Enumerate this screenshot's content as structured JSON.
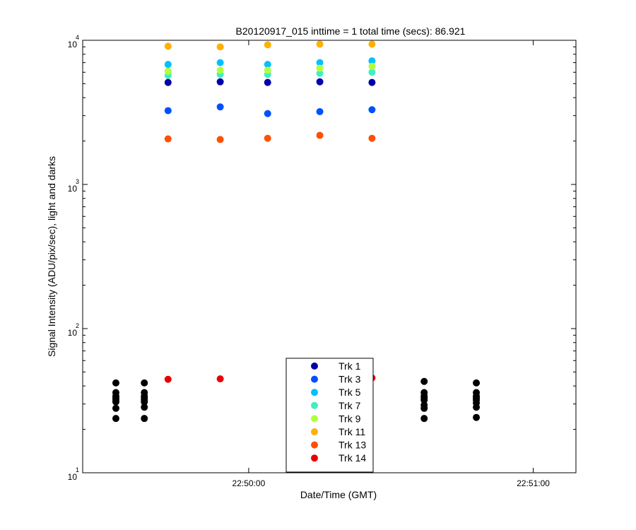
{
  "chart_data": {
    "type": "scatter",
    "title": "B20120917_015 inttime = 1 total time (secs): 86.921",
    "xlabel": "Date/Time (GMT)",
    "ylabel": "Signal Intensity (ADU/pix/sec), light and darks",
    "yscale": "log",
    "ylim": [
      10,
      10000
    ],
    "xlim": [
      "22:49:25",
      "22:51:09"
    ],
    "x_ticks": [
      {
        "value": "22:50:00",
        "label": "22:50:00"
      },
      {
        "value": "22:51:00",
        "label": "22:51:00"
      }
    ],
    "y_ticks": [
      {
        "value": 10,
        "base": "10",
        "exp": "1"
      },
      {
        "value": 100,
        "base": "10",
        "exp": "2"
      },
      {
        "value": 1000,
        "base": "10",
        "exp": "3"
      },
      {
        "value": 10000,
        "base": "10",
        "exp": "4"
      }
    ],
    "grid": false,
    "legend_position": "bottom-center",
    "series": [
      {
        "name": "Trk 1",
        "color": "#0000a8",
        "x": [
          "22:49:43",
          "22:49:54",
          "22:50:04",
          "22:50:15",
          "22:50:26"
        ],
        "y": [
          5100,
          5150,
          5100,
          5150,
          5100
        ]
      },
      {
        "name": "Trk 3",
        "color": "#0050ff",
        "x": [
          "22:49:43",
          "22:49:54",
          "22:50:04",
          "22:50:15",
          "22:50:26"
        ],
        "y": [
          3250,
          3450,
          3100,
          3200,
          3300
        ]
      },
      {
        "name": "Trk 5",
        "color": "#00c0ff",
        "x": [
          "22:49:43",
          "22:49:54",
          "22:50:04",
          "22:50:15",
          "22:50:26"
        ],
        "y": [
          6800,
          7000,
          6800,
          7000,
          7200
        ]
      },
      {
        "name": "Trk 7",
        "color": "#3ff0c0",
        "x": [
          "22:49:43",
          "22:49:54",
          "22:50:04",
          "22:50:15",
          "22:50:26"
        ],
        "y": [
          5700,
          5800,
          5800,
          5900,
          6000
        ]
      },
      {
        "name": "Trk 9",
        "color": "#b0ff40",
        "x": [
          "22:49:43",
          "22:49:54",
          "22:50:04",
          "22:50:15",
          "22:50:26"
        ],
        "y": [
          6100,
          6200,
          6200,
          6400,
          6600
        ]
      },
      {
        "name": "Trk 11",
        "color": "#ffb000",
        "x": [
          "22:49:43",
          "22:49:54",
          "22:50:04",
          "22:50:15",
          "22:50:26"
        ],
        "y": [
          9100,
          9000,
          9300,
          9400,
          9400
        ]
      },
      {
        "name": "Trk 13",
        "color": "#ff5000",
        "x": [
          "22:49:43",
          "22:49:54",
          "22:50:04",
          "22:50:15",
          "22:50:26"
        ],
        "y": [
          2070,
          2050,
          2090,
          2190,
          2090
        ]
      },
      {
        "name": "Trk 14",
        "color": "#e80000",
        "x": [
          "22:49:43",
          "22:49:54",
          "22:50:26"
        ],
        "y": [
          44.5,
          44.8,
          45.5
        ]
      }
    ],
    "dark_points": {
      "color": "#000000",
      "x": [
        "22:49:32",
        "22:49:32",
        "22:49:32",
        "22:49:32",
        "22:49:32",
        "22:49:32",
        "22:49:32",
        "22:49:32",
        "22:49:38",
        "22:49:38",
        "22:49:38",
        "22:49:38",
        "22:49:38",
        "22:49:38",
        "22:49:38",
        "22:49:38",
        "22:50:37",
        "22:50:37",
        "22:50:37",
        "22:50:37",
        "22:50:37",
        "22:50:37",
        "22:50:37",
        "22:50:37",
        "22:50:48",
        "22:50:48",
        "22:50:48",
        "22:50:48",
        "22:50:48",
        "22:50:48",
        "22:50:48",
        "22:50:48"
      ],
      "y": [
        42,
        36,
        34,
        33,
        32,
        31,
        28,
        23.8,
        42,
        36,
        34,
        33,
        32,
        31,
        28.5,
        23.8,
        43,
        36,
        34,
        33,
        32,
        29.5,
        28,
        23.8,
        42,
        36,
        34,
        33,
        32,
        30.5,
        28.5,
        24.2
      ]
    }
  }
}
